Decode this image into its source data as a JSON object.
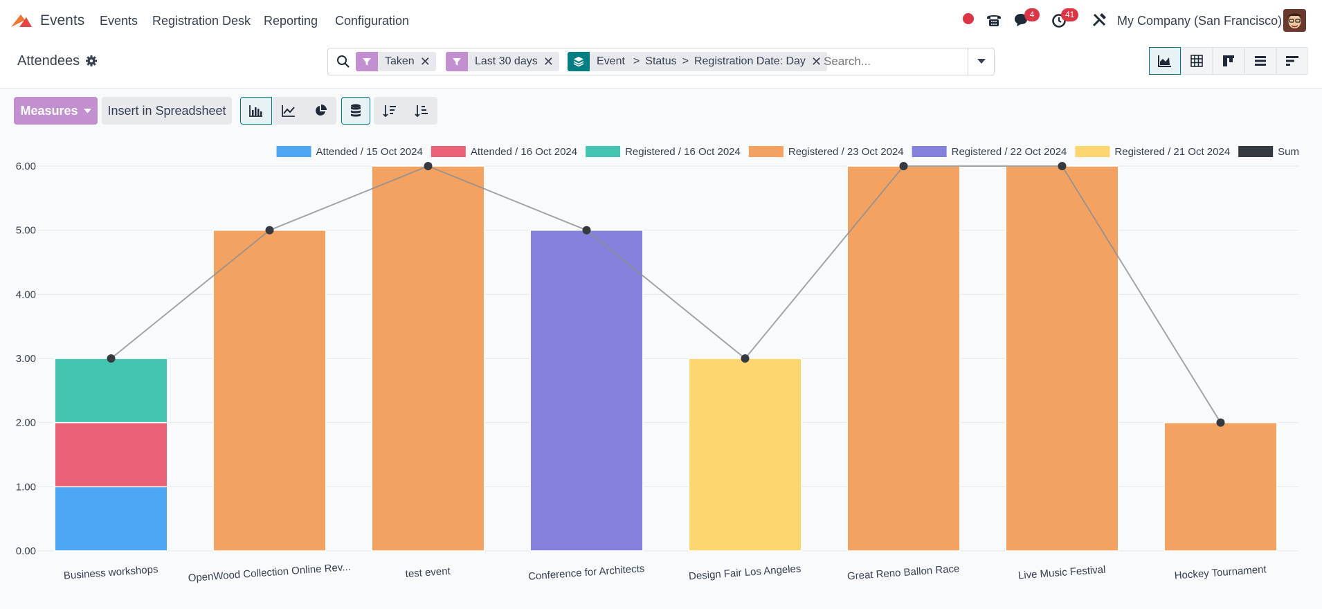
{
  "navbar": {
    "app_name": "Events",
    "menu": [
      {
        "label": "Events"
      },
      {
        "label": "Registration Desk"
      },
      {
        "label": "Reporting"
      },
      {
        "label": "Configuration"
      }
    ],
    "messages_badge": "4",
    "activities_badge": "41",
    "company": "My Company (San Francisco)"
  },
  "control_panel": {
    "title": "Attendees",
    "facets": [
      {
        "type": "filter",
        "label": "Taken"
      },
      {
        "type": "filter",
        "label": "Last 30 days"
      },
      {
        "type": "groupby",
        "parts": [
          "Event",
          "Status",
          "Registration Date: Day"
        ],
        "separator": ">"
      }
    ],
    "search_placeholder": "Search...",
    "views": [
      "graph",
      "pivot",
      "kanban",
      "list",
      "gantt"
    ]
  },
  "toolbar": {
    "measures_label": "Measures",
    "insert_label": "Insert in Spreadsheet"
  },
  "colors": {
    "brand_purple": "#c28fd0",
    "teal": "#017e84",
    "facet_groupby": "#017e84",
    "facet_filter": "#c28fd0"
  },
  "chart_data": {
    "type": "bar",
    "stacked": true,
    "categories": [
      "Business workshops",
      "OpenWood Collection Online Rev...",
      "test event",
      "Conference for Architects",
      "Design Fair Los Angeles",
      "Great Reno Ballon Race",
      "Live Music Festival",
      "Hockey Tournament"
    ],
    "series": [
      {
        "name": "Attended / 15 Oct 2024",
        "color": "#4ea7f2",
        "values": [
          1,
          0,
          0,
          0,
          0,
          0,
          0,
          0
        ]
      },
      {
        "name": "Attended / 16 Oct 2024",
        "color": "#ea6175",
        "values": [
          1,
          0,
          0,
          0,
          0,
          0,
          0,
          0
        ]
      },
      {
        "name": "Registered / 16 Oct 2024",
        "color": "#43c5b1",
        "values": [
          1,
          0,
          0,
          0,
          0,
          0,
          0,
          0
        ]
      },
      {
        "name": "Registered / 23 Oct 2024",
        "color": "#f4a261",
        "values": [
          0,
          5,
          6,
          0,
          0,
          6,
          6,
          2
        ]
      },
      {
        "name": "Registered / 22 Oct 2024",
        "color": "#8481dd",
        "values": [
          0,
          0,
          0,
          5,
          0,
          0,
          0,
          0
        ]
      },
      {
        "name": "Registered / 21 Oct 2024",
        "color": "#fdd670",
        "values": [
          0,
          0,
          0,
          0,
          3,
          0,
          0,
          0
        ]
      }
    ],
    "sum": {
      "name": "Sum",
      "color": "#343a40",
      "values": [
        3,
        5,
        6,
        5,
        3,
        6,
        6,
        2
      ]
    },
    "yticks": [
      "0.00",
      "1.00",
      "2.00",
      "3.00",
      "4.00",
      "5.00",
      "6.00"
    ],
    "ylim": [
      0,
      6
    ],
    "grid": true,
    "legend_position": "top-right"
  }
}
